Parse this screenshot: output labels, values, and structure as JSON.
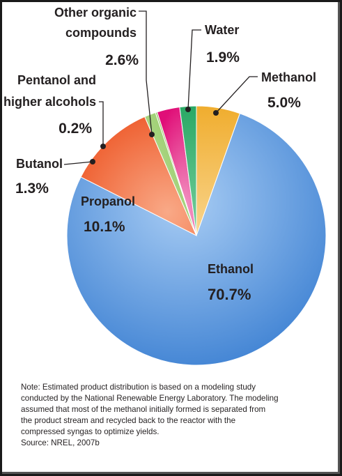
{
  "chart_data": {
    "type": "pie",
    "slices": [
      {
        "label": "Ethanol",
        "value": 70.7,
        "display": "70.7%",
        "color": "#5b97db"
      },
      {
        "label": "Propanol",
        "value": 10.1,
        "display": "10.1%",
        "color": "#f4784f"
      },
      {
        "label": "Butanol",
        "value": 1.3,
        "display": "1.3%",
        "color": "#9acd6b"
      },
      {
        "label": "Pentanol and higher alcohols",
        "value": 0.2,
        "display": "0.2%",
        "color": "#8fc15a"
      },
      {
        "label": "Other organic compounds",
        "value": 2.6,
        "display": "2.6%",
        "color": "#e2167e"
      },
      {
        "label": "Water",
        "value": 1.9,
        "display": "1.9%",
        "color": "#3db577"
      },
      {
        "label": "Methanol",
        "value": 5.0,
        "display": "5.0%",
        "color": "#f2b640"
      }
    ],
    "labels": {
      "ethanol": {
        "name": "Ethanol",
        "pct": "70.7%"
      },
      "propanol": {
        "name": "Propanol",
        "pct": "10.1%"
      },
      "butanol": {
        "name": "Butanol",
        "pct": "1.3%"
      },
      "pentanol": {
        "line1": "Pentanol and",
        "line2": "higher alcohols",
        "pct": "0.2%"
      },
      "other": {
        "line1": "Other organic",
        "line2": "compounds",
        "pct": "2.6%"
      },
      "water": {
        "name": "Water",
        "pct": "1.9%"
      },
      "methanol": {
        "name": "Methanol",
        "pct": "5.0%"
      }
    }
  },
  "note": {
    "lines": [
      "Note: Estimated product distribution is based on a modeling study",
      "conducted by the National Renewable Energy Laboratory. The modeling",
      "assumed that most of the methanol initially formed is separated from",
      "the product stream and recycled back to the reactor with the",
      "compressed syngas to optimize yields."
    ],
    "source": "Source: NREL, 2007b"
  }
}
